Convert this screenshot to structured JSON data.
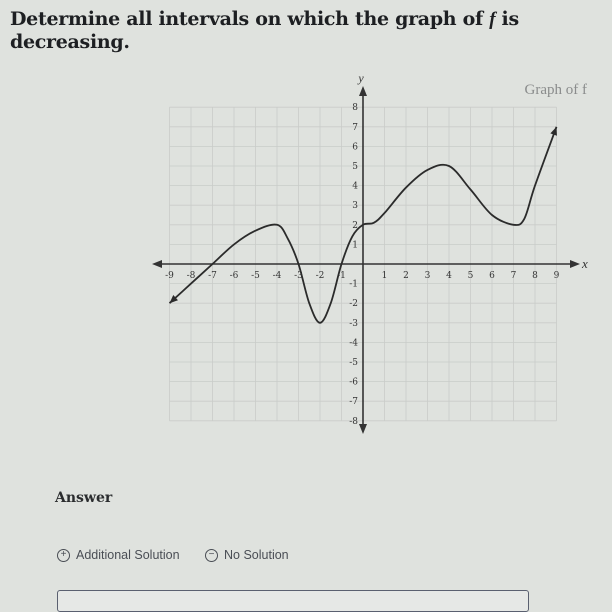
{
  "question": {
    "prefix": "Determine all intervals on which the graph of ",
    "func": "f",
    "suffix": " is decreasing."
  },
  "chart_data": {
    "type": "line",
    "title": "Graph of f",
    "xlabel": "x",
    "ylabel": "y",
    "xlim": [
      -9,
      9
    ],
    "ylim": [
      -8,
      8
    ],
    "grid": true,
    "x_ticks": [
      -9,
      -8,
      -7,
      -6,
      -5,
      -4,
      -3,
      -2,
      -1,
      1,
      2,
      3,
      4,
      5,
      6,
      7,
      8,
      9
    ],
    "y_ticks": [
      -8,
      -7,
      -6,
      -5,
      -4,
      -3,
      -2,
      -1,
      1,
      2,
      3,
      4,
      5,
      6,
      7,
      8
    ],
    "series": [
      {
        "points": [
          [
            -9,
            -2
          ],
          [
            -8,
            -1
          ],
          [
            -7,
            0
          ],
          [
            -6,
            1
          ],
          [
            -5,
            1.7
          ],
          [
            -4,
            2
          ],
          [
            -3.5,
            1.3
          ],
          [
            -3,
            0
          ],
          [
            -2.5,
            -2
          ],
          [
            -2,
            -3
          ],
          [
            -1.5,
            -2
          ],
          [
            -1,
            0
          ],
          [
            -0.5,
            1.4
          ],
          [
            0,
            2
          ],
          [
            0.5,
            2.1
          ],
          [
            1,
            2.6
          ],
          [
            2,
            3.9
          ],
          [
            3,
            4.8
          ],
          [
            4,
            5
          ],
          [
            5,
            3.8
          ],
          [
            6,
            2.5
          ],
          [
            7,
            2
          ],
          [
            7.5,
            2.3
          ],
          [
            8,
            4
          ],
          [
            9,
            7
          ]
        ],
        "color": "#2b2b2b"
      }
    ]
  },
  "answer": {
    "label": "Answer",
    "additional_solution": "Additional Solution",
    "no_solution": "No Solution",
    "plus_icon": "+",
    "minus_icon": "−"
  }
}
